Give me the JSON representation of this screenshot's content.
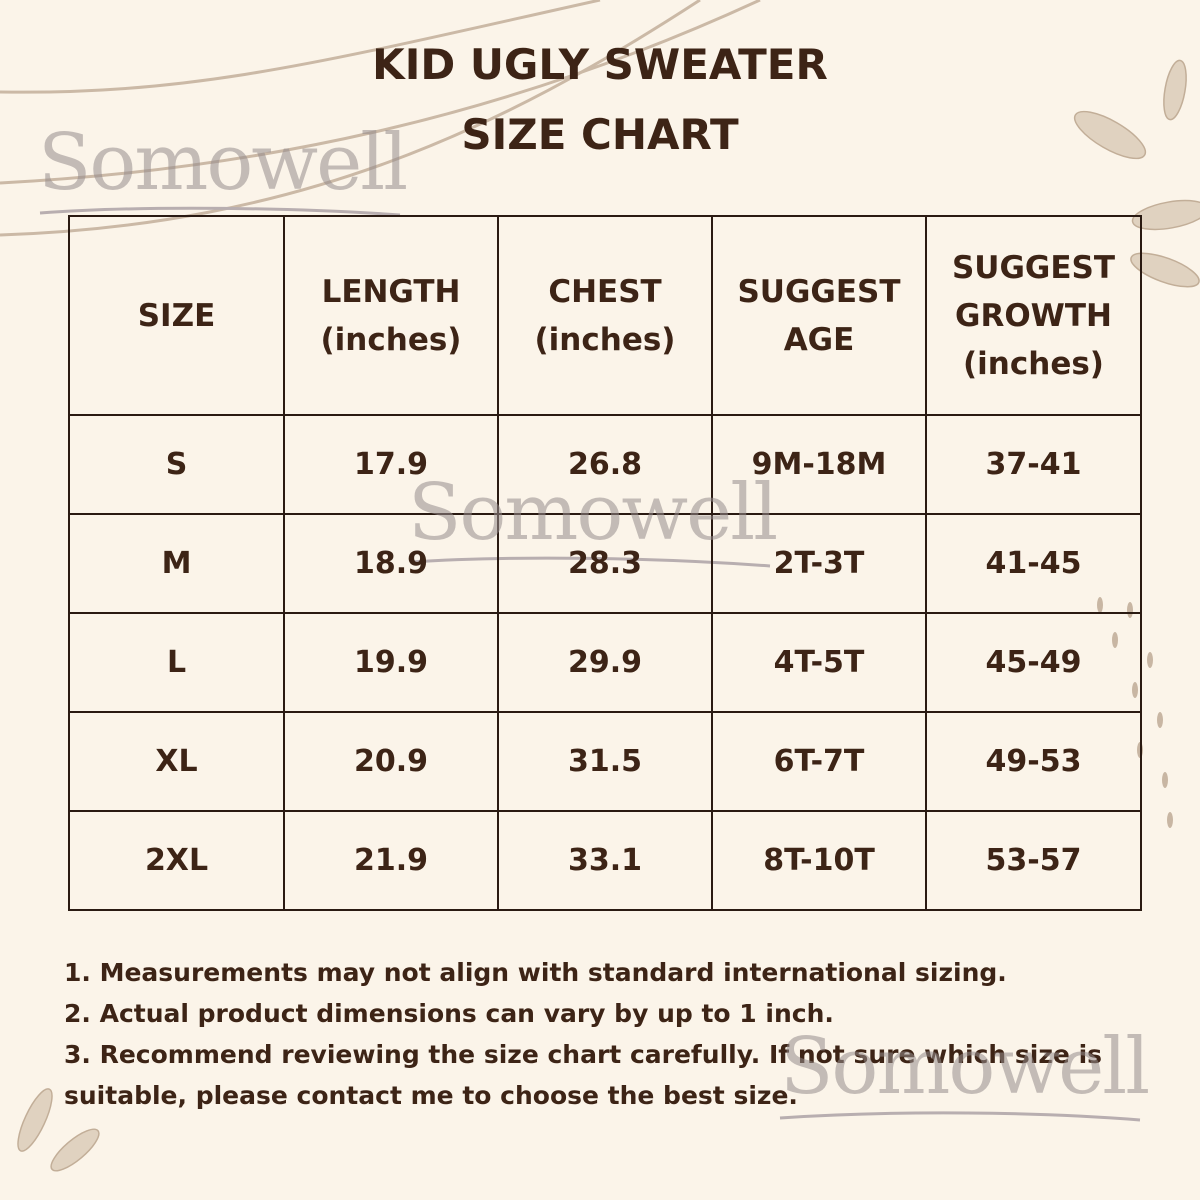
{
  "title": {
    "line1": "KID UGLY SWEATER",
    "line2": "SIZE CHART"
  },
  "table": {
    "headers": [
      {
        "line1": "SIZE",
        "line2": ""
      },
      {
        "line1": "LENGTH",
        "line2": "(inches)"
      },
      {
        "line1": "CHEST",
        "line2": "(inches)"
      },
      {
        "line1": "SUGGEST",
        "line2": "AGE"
      },
      {
        "line1": "SUGGEST",
        "line2": "GROWTH",
        "line3": "(inches)"
      }
    ],
    "rows": [
      [
        "S",
        "17.9",
        "26.8",
        "9M-18M",
        "37-41"
      ],
      [
        "M",
        "18.9",
        "28.3",
        "2T-3T",
        "41-45"
      ],
      [
        "L",
        "19.9",
        "29.9",
        "4T-5T",
        "45-49"
      ],
      [
        "XL",
        "20.9",
        "31.5",
        "6T-7T",
        "49-53"
      ],
      [
        "2XL",
        "21.9",
        "33.1",
        "8T-10T",
        "53-57"
      ]
    ]
  },
  "notes": [
    "1. Measurements may not align with standard international sizing.",
    "2. Actual product dimensions can vary by up to 1 inch.",
    "3. Recommend reviewing the size chart carefully. If not sure which size is suitable, please contact me to choose the best size."
  ],
  "watermark": "Somowell",
  "colors": {
    "background": "#fbf4e9",
    "text": "#3d2416",
    "decoration": "#c9b8a6"
  }
}
